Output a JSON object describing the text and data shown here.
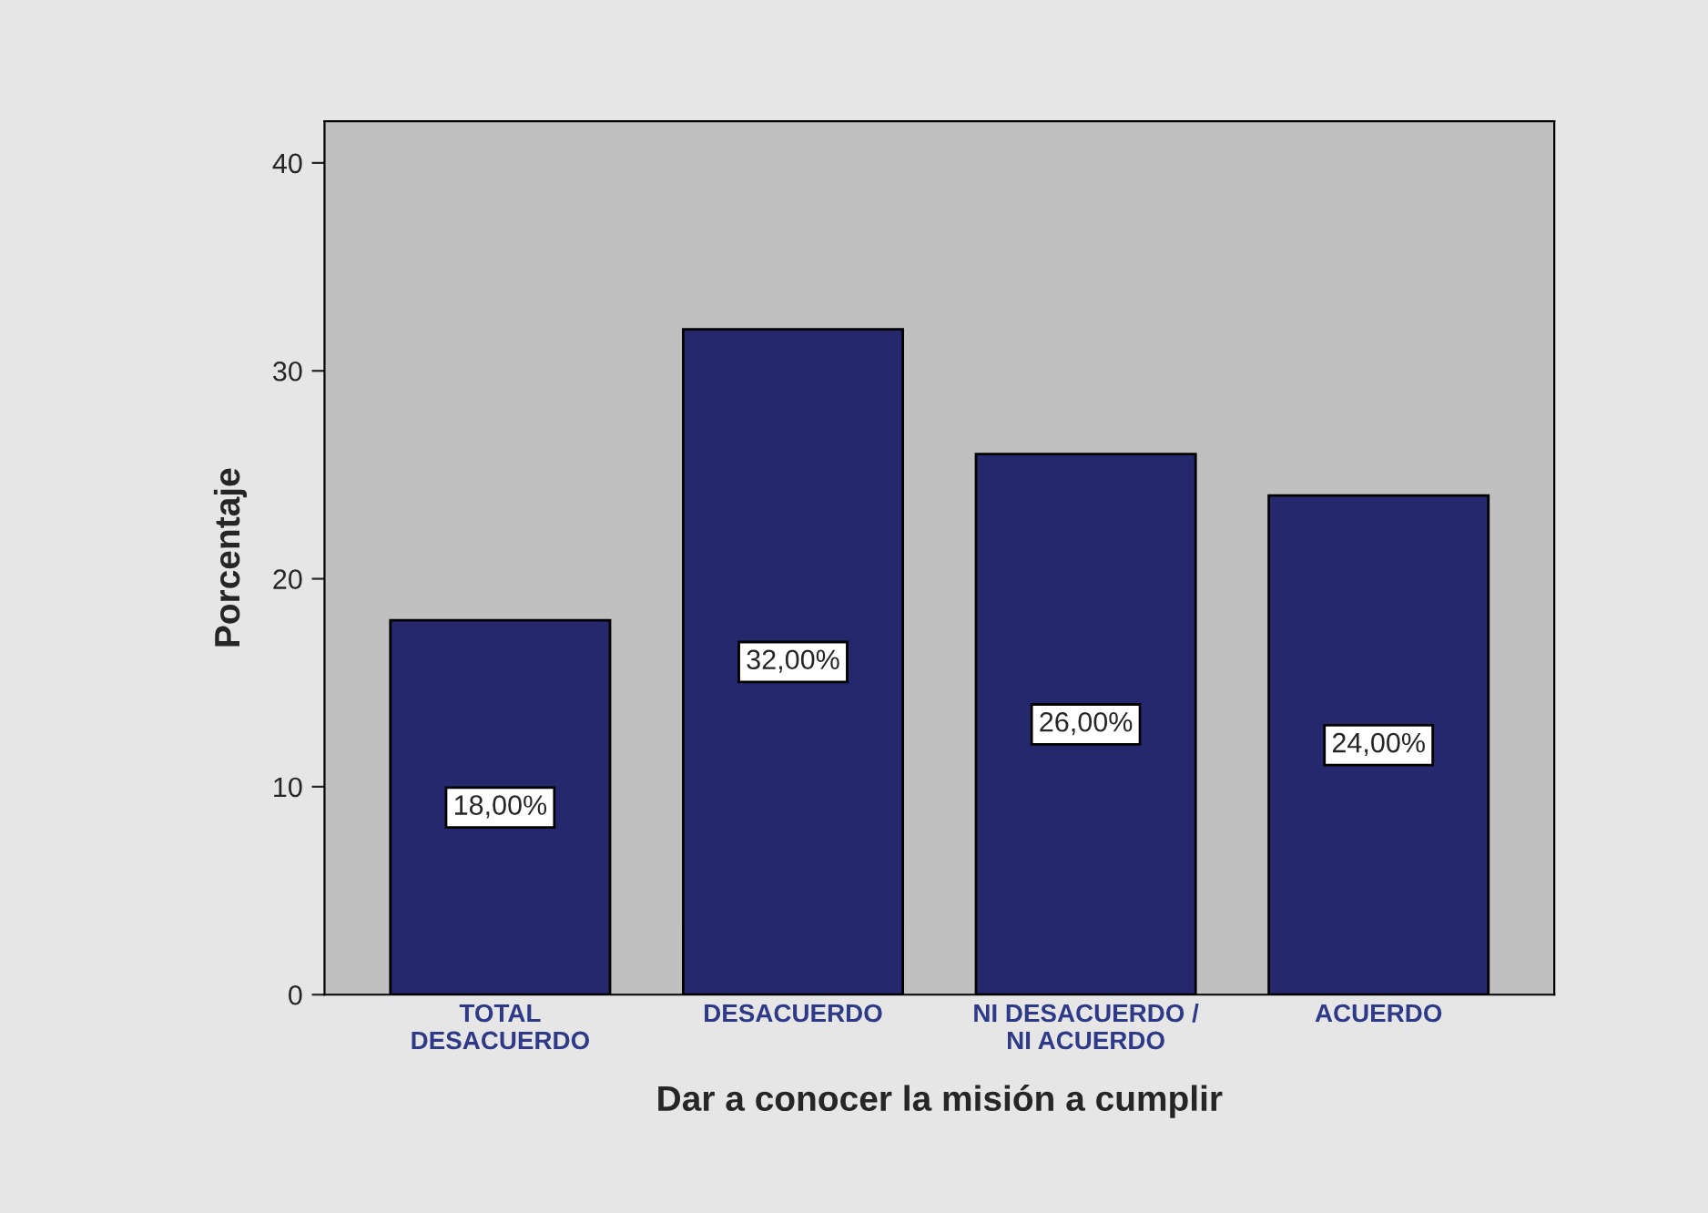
{
  "chart_data": {
    "type": "bar",
    "xlabel": "Dar a conocer la misión a cumplir",
    "ylabel": "Porcentaje",
    "categories": [
      "TOTAL\nDESACUERDO",
      "DESACUERDO",
      "NI DESACUERDO /\nNI ACUERDO",
      "ACUERDO"
    ],
    "values": [
      18,
      32,
      26,
      24
    ],
    "value_labels": [
      "18,00%",
      "32,00%",
      "26,00%",
      "24,00%"
    ],
    "color": "#26286e",
    "ylim": [
      0,
      42
    ],
    "yticks": [
      0,
      10,
      20,
      30,
      40
    ],
    "grid": false
  }
}
